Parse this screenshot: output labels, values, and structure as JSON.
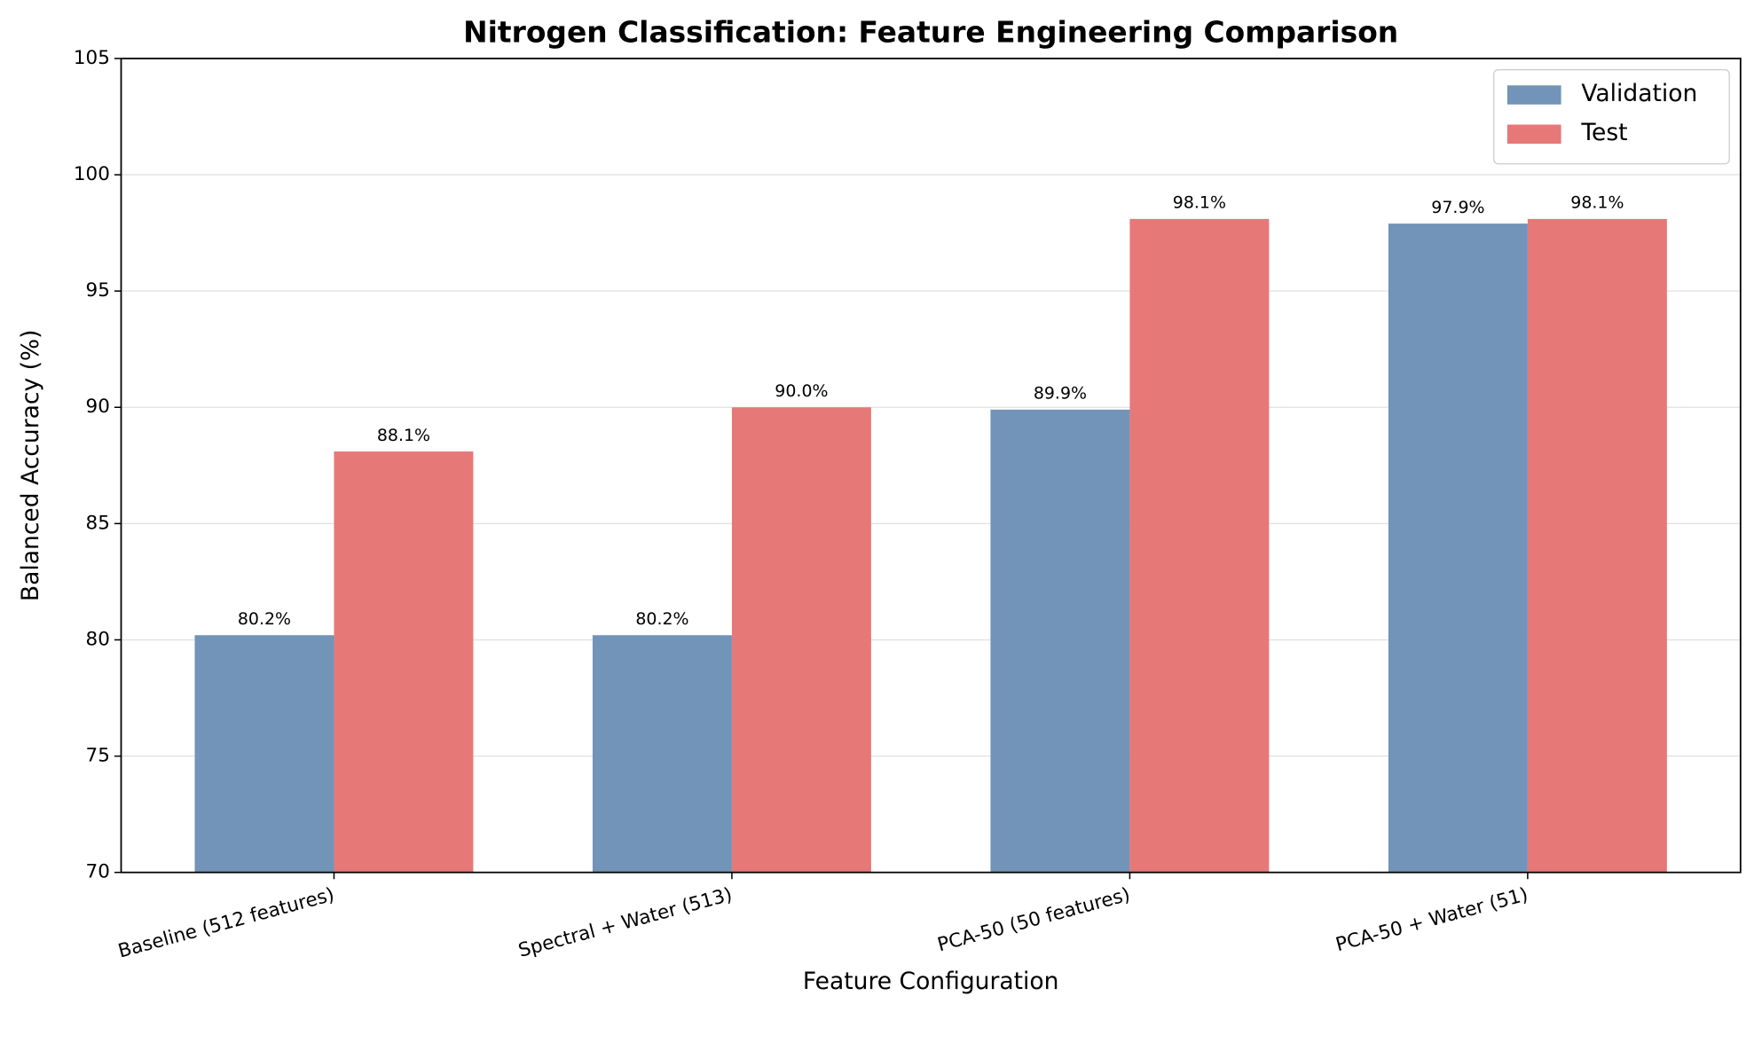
{
  "chart_data": {
    "type": "bar",
    "title": "Nitrogen Classification: Feature Engineering Comparison",
    "x_label": "Feature Configuration",
    "y_label": "Balanced Accuracy (%)",
    "categories": [
      "Baseline (512 features)",
      "Spectral + Water (513)",
      "PCA-50 (50 features)",
      "PCA-50 + Water (51)"
    ],
    "series": [
      {
        "name": "Validation",
        "color": "#7194b8",
        "values": [
          80.2,
          80.2,
          89.9,
          97.9
        ],
        "value_labels": [
          "80.2%",
          "80.2%",
          "89.9%",
          "97.9%"
        ]
      },
      {
        "name": "Test",
        "color": "#e77878",
        "values": [
          88.1,
          90.0,
          98.1,
          98.1
        ],
        "value_labels": [
          "88.1%",
          "90.0%",
          "98.1%",
          "98.1%"
        ]
      }
    ],
    "ylim": [
      70,
      105
    ],
    "yticks": [
      70,
      75,
      80,
      85,
      90,
      95,
      100,
      105
    ],
    "grid": true,
    "legend": "upper right"
  }
}
